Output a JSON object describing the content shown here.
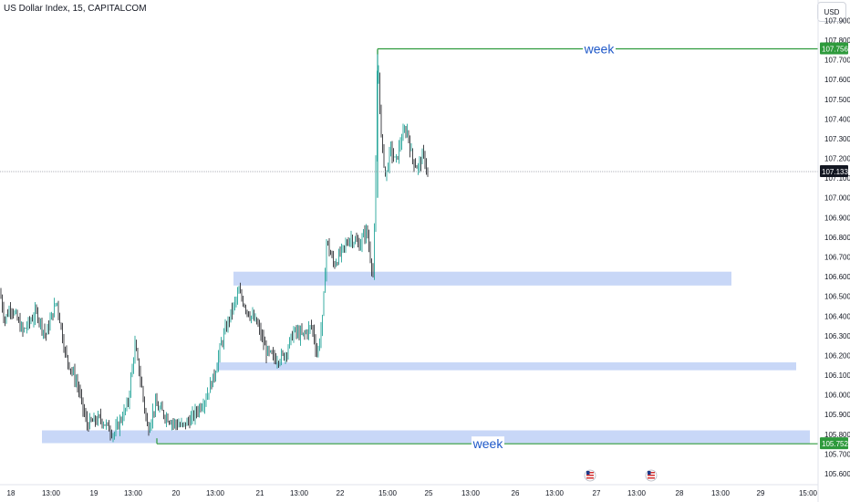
{
  "header": {
    "title": "US Dollar Index, 15, CAPITALCOM",
    "currency": "USD"
  },
  "colors": {
    "candle": "#2f3236",
    "candle_up": "#26a69a",
    "zone": "#c5d5f7",
    "week_line": "#2e9a3c",
    "week_label": "#1e58c8",
    "current_price_bg": "#131722",
    "week_price_bg": "#2e9a3c",
    "axis_text": "#131722"
  },
  "chart_data": {
    "type": "candlestick",
    "symbol": "US Dollar Index",
    "interval": "15",
    "source": "CAPITALCOM",
    "y_axis": {
      "ticks": [
        "107.900",
        "107.800",
        "107.700",
        "107.600",
        "107.500",
        "107.400",
        "107.300",
        "107.200",
        "107.100",
        "107.000",
        "106.900",
        "106.800",
        "106.700",
        "106.600",
        "106.500",
        "106.400",
        "106.300",
        "106.200",
        "106.100",
        "106.000",
        "105.900",
        "105.800",
        "105.700",
        "105.600"
      ],
      "range": [
        105.58,
        107.92
      ]
    },
    "x_axis": {
      "ticks": [
        "18",
        "13:00",
        "19",
        "13:00",
        "20",
        "13:00",
        "21",
        "13:00",
        "22",
        "15:00",
        "25",
        "13:00",
        "26",
        "13:00",
        "27",
        "13:00",
        "28",
        "13:00",
        "29",
        "15:00"
      ]
    },
    "price_path": [
      [
        0,
        106.52
      ],
      [
        5,
        106.38
      ],
      [
        12,
        106.45
      ],
      [
        25,
        106.32
      ],
      [
        40,
        106.42
      ],
      [
        50,
        106.3
      ],
      [
        62,
        106.48
      ],
      [
        72,
        106.2
      ],
      [
        85,
        106.05
      ],
      [
        95,
        105.85
      ],
      [
        110,
        105.88
      ],
      [
        125,
        105.8
      ],
      [
        140,
        105.95
      ],
      [
        148,
        106.25
      ],
      [
        155,
        106.05
      ],
      [
        162,
        105.82
      ],
      [
        170,
        105.95
      ],
      [
        180,
        105.9
      ],
      [
        190,
        105.86
      ],
      [
        200,
        105.84
      ],
      [
        210,
        105.88
      ],
      [
        225,
        105.98
      ],
      [
        235,
        106.1
      ],
      [
        242,
        106.25
      ],
      [
        252,
        106.4
      ],
      [
        262,
        106.52
      ],
      [
        272,
        106.42
      ],
      [
        282,
        106.36
      ],
      [
        292,
        106.22
      ],
      [
        302,
        106.18
      ],
      [
        312,
        106.2
      ],
      [
        322,
        106.32
      ],
      [
        332,
        106.3
      ],
      [
        342,
        106.35
      ],
      [
        348,
        106.2
      ],
      [
        354,
        106.4
      ],
      [
        358,
        106.78
      ],
      [
        366,
        106.66
      ],
      [
        374,
        106.72
      ],
      [
        384,
        106.8
      ],
      [
        394,
        106.76
      ],
      [
        402,
        106.84
      ],
      [
        406,
        106.7
      ],
      [
        409,
        106.62
      ],
      [
        411,
        106.88
      ],
      [
        414,
        107.75
      ],
      [
        418,
        107.3
      ],
      [
        423,
        107.1
      ],
      [
        428,
        107.25
      ],
      [
        434,
        107.18
      ],
      [
        440,
        107.3
      ],
      [
        446,
        107.35
      ],
      [
        452,
        107.2
      ],
      [
        458,
        107.15
      ],
      [
        464,
        107.22
      ],
      [
        469,
        107.13
      ]
    ],
    "last_price": 107.133,
    "zones": [
      {
        "x0": 256,
        "x1": 802,
        "top": 106.625,
        "bottom": 106.555
      },
      {
        "x0": 238,
        "x1": 873,
        "top": 106.165,
        "bottom": 106.125
      },
      {
        "x0": 46,
        "x1": 888,
        "top": 105.82,
        "bottom": 105.755
      }
    ],
    "levels": [
      {
        "label": "week",
        "price_label": "107.756",
        "value": 107.756,
        "x0": 414
      },
      {
        "label": "week",
        "price_label": "105.752",
        "value": 105.752,
        "x0": 172
      }
    ],
    "current_price_label": "107.133"
  }
}
